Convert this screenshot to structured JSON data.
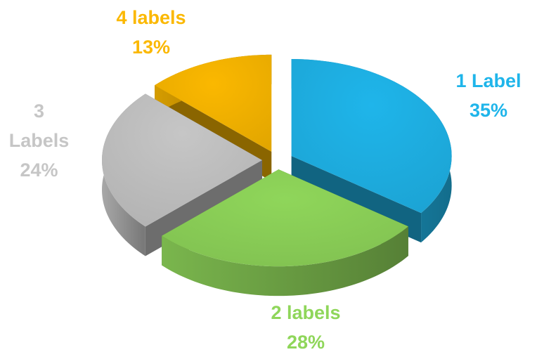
{
  "chart_data": {
    "type": "pie",
    "categories": [
      "1 Label",
      "2 labels",
      "3 Labels",
      "4 labels"
    ],
    "values": [
      35,
      28,
      24,
      13
    ],
    "value_labels": [
      "35%",
      "28%",
      "24%",
      "13%"
    ],
    "colors": [
      "#1fb5ea",
      "#8fd65a",
      "#c6c6c6",
      "#fbb800"
    ]
  }
}
